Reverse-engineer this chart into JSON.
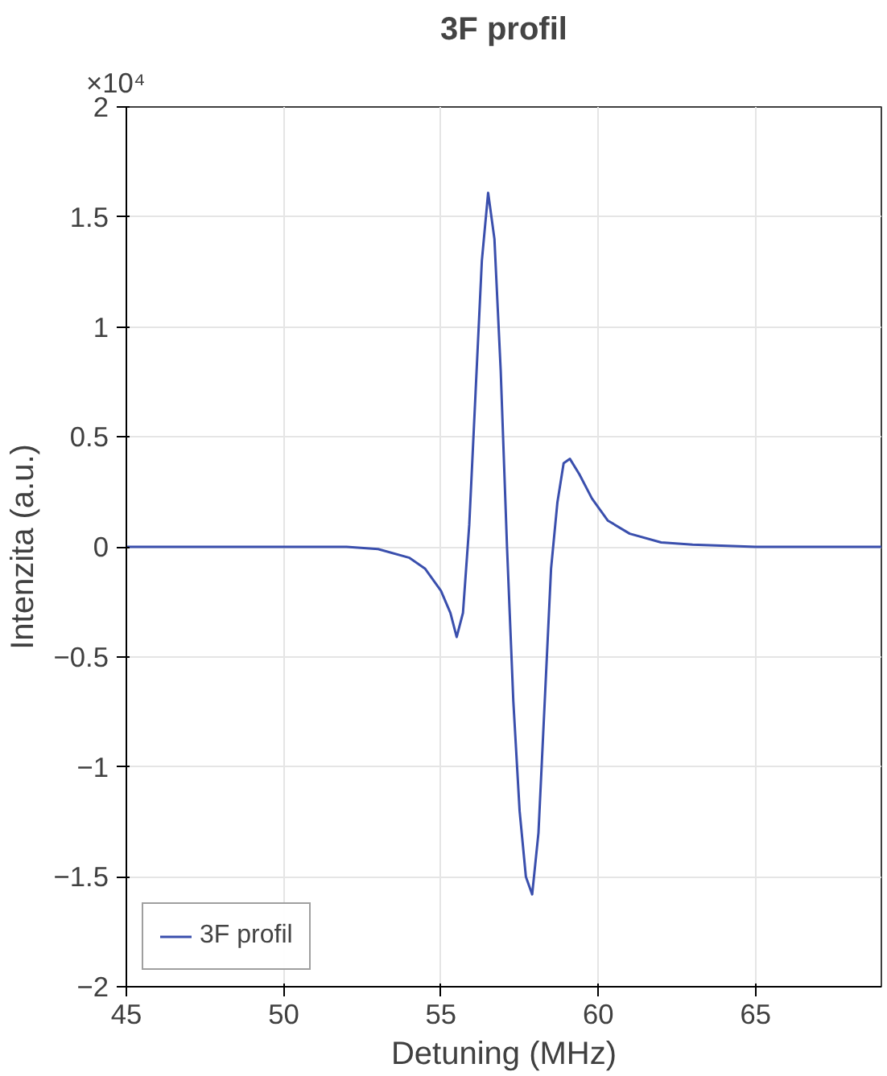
{
  "chart_data": {
    "type": "line",
    "title": "3F profil",
    "xlabel": "Detuning (MHz)",
    "ylabel": "Intenzita (a.u.)",
    "annotations": [
      "×10⁴"
    ],
    "xlim": [
      45,
      69
    ],
    "xticks": [
      45,
      50,
      55,
      60,
      65
    ],
    "ylim": [
      -2,
      2
    ],
    "yticks": [
      -2,
      -1.5,
      -1,
      -0.5,
      0,
      0.5,
      1,
      1.5,
      2
    ],
    "grid": true,
    "legend": "bottom left",
    "line_style": "solid",
    "marker": "none",
    "series": [
      {
        "name": "3F profil",
        "color": "#3a4fad",
        "x": [
          45,
          50,
          52,
          53,
          54,
          54.5,
          55,
          55.3,
          55.5,
          55.7,
          55.9,
          56.1,
          56.3,
          56.5,
          56.7,
          56.9,
          57.1,
          57.3,
          57.5,
          57.7,
          57.9,
          58.1,
          58.3,
          58.5,
          58.7,
          58.9,
          59.1,
          59.4,
          59.8,
          60.3,
          61,
          62,
          63,
          65,
          69
        ],
        "values": [
          0,
          0,
          0,
          -0.01,
          -0.05,
          -0.1,
          -0.2,
          -0.3,
          -0.41,
          -0.3,
          0.1,
          0.7,
          1.3,
          1.61,
          1.4,
          0.8,
          0,
          -0.7,
          -1.2,
          -1.5,
          -1.58,
          -1.3,
          -0.7,
          -0.1,
          0.2,
          0.38,
          0.4,
          0.33,
          0.22,
          0.12,
          0.06,
          0.02,
          0.01,
          0,
          0
        ]
      }
    ]
  }
}
